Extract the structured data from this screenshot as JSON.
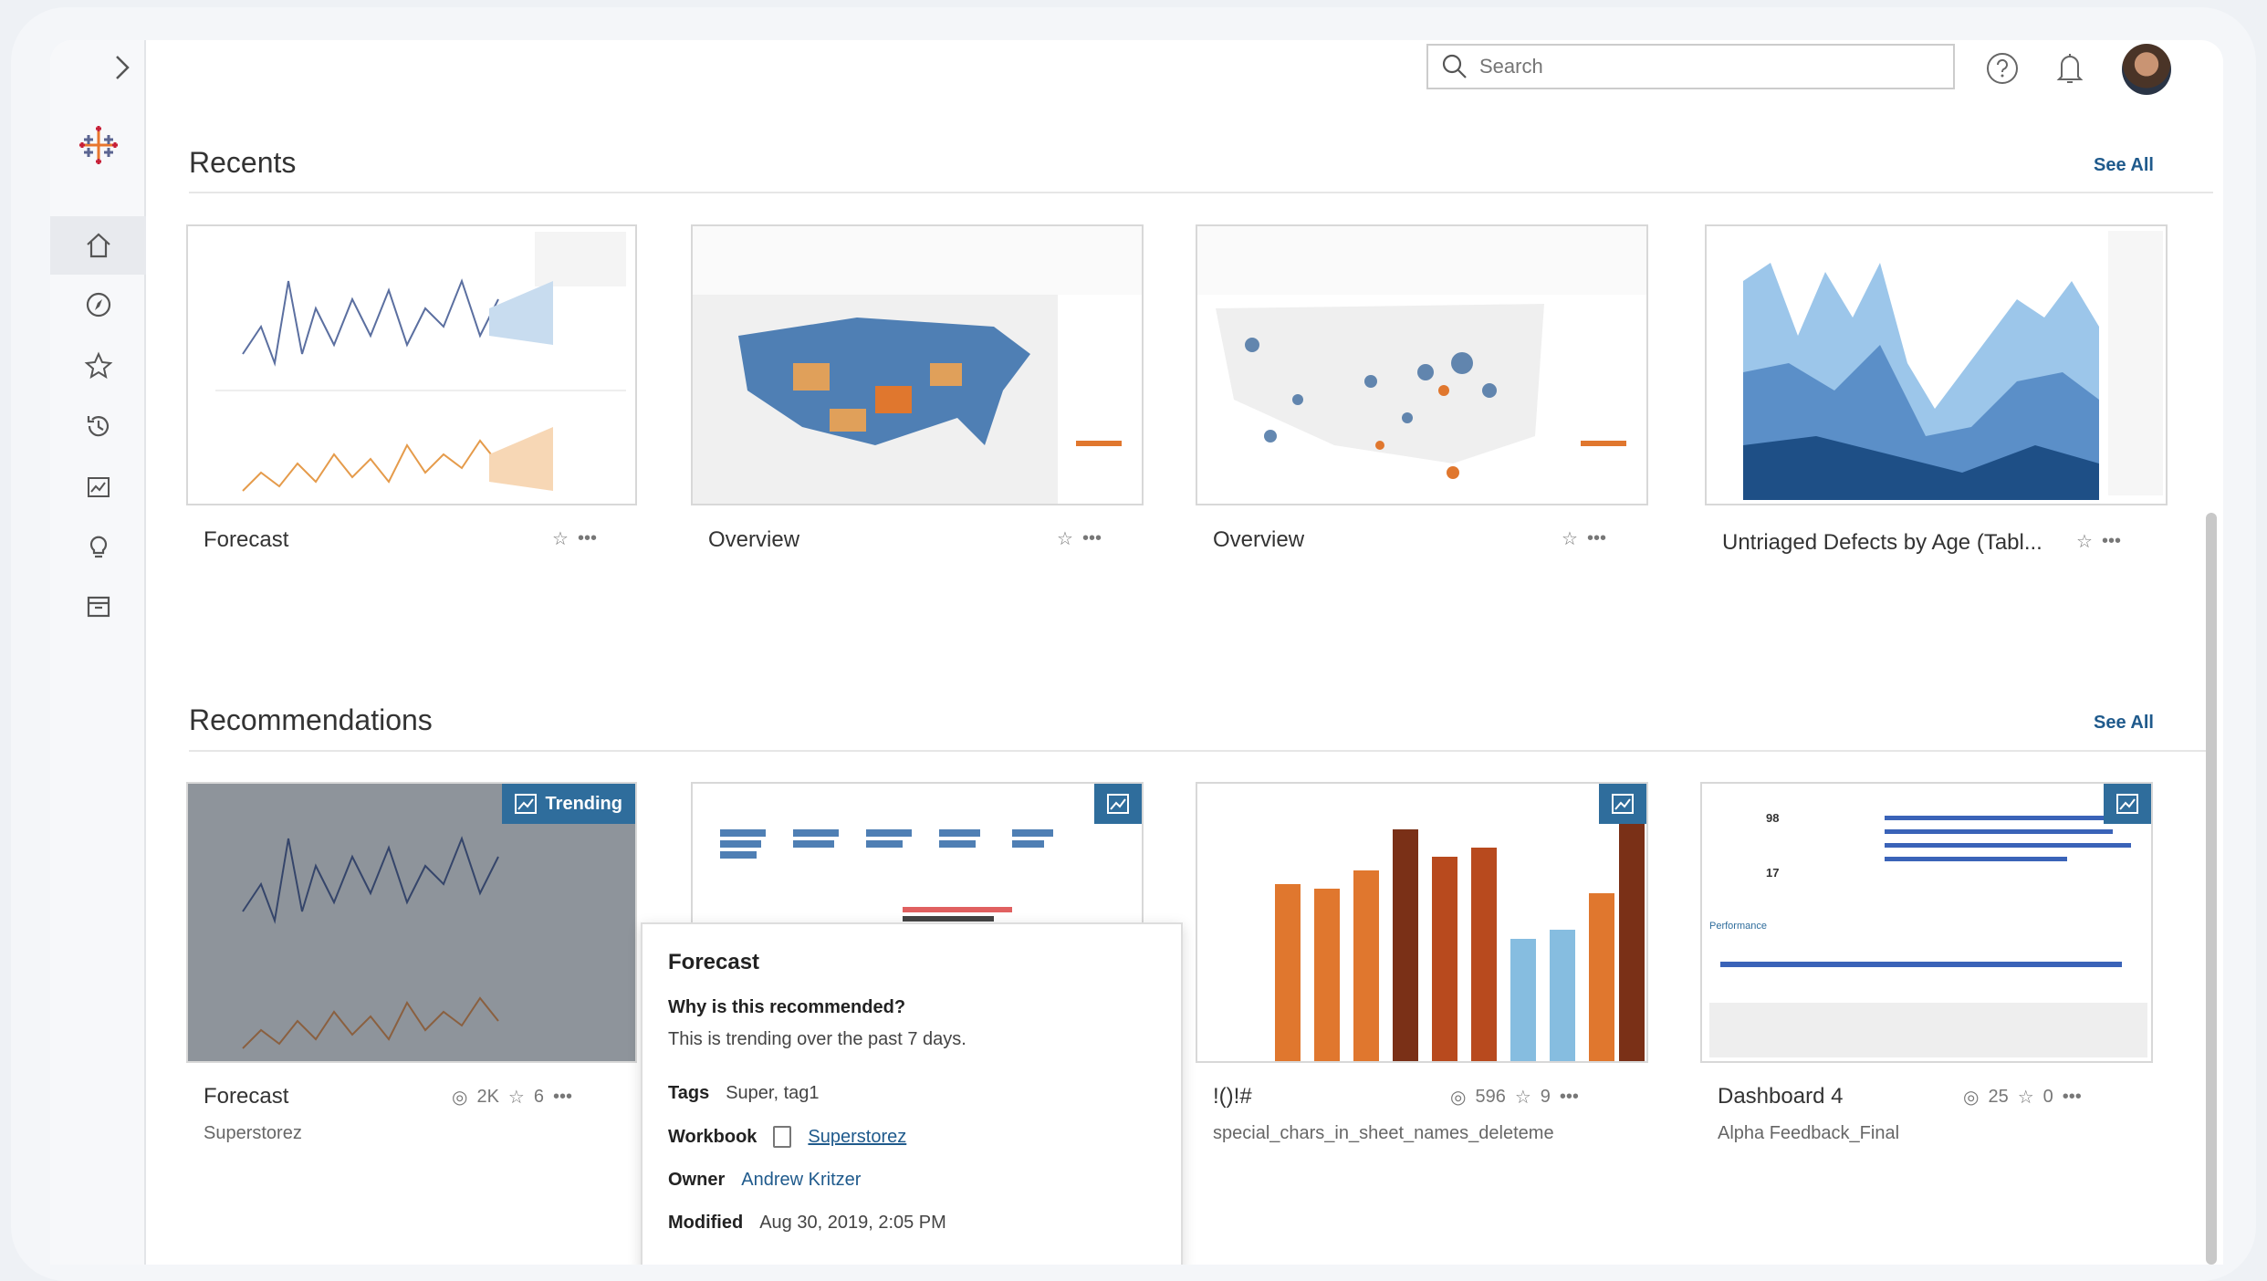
{
  "header": {
    "search_placeholder": "Search",
    "help_icon": "help-circle-icon",
    "bell_icon": "bell-icon"
  },
  "sidebar": {
    "items": [
      {
        "name": "home",
        "active": true
      },
      {
        "name": "explore"
      },
      {
        "name": "favorites"
      },
      {
        "name": "recents"
      },
      {
        "name": "recommendations"
      },
      {
        "name": "ask-data"
      },
      {
        "name": "collections"
      }
    ]
  },
  "recents": {
    "title": "Recents",
    "see_all": "See All",
    "items": [
      {
        "title": "Forecast"
      },
      {
        "title": "Overview"
      },
      {
        "title": "Overview"
      },
      {
        "title": "Untriaged Defects by Age (Tabl..."
      }
    ]
  },
  "recommendations": {
    "title": "Recommendations",
    "see_all": "See All",
    "items": [
      {
        "title": "Forecast",
        "subtitle": "Superstorez",
        "views": "2K",
        "favorites": "6",
        "badge": "Trending"
      },
      {
        "title": "",
        "subtitle": ""
      },
      {
        "title": "!()!#",
        "subtitle": "special_chars_in_sheet_names_deleteme",
        "views": "596",
        "favorites": "9"
      },
      {
        "title": "Dashboard 4",
        "subtitle": "Alpha Feedback_Final",
        "views": "25",
        "favorites": "0"
      }
    ]
  },
  "popup": {
    "title": "Forecast",
    "question": "Why is this recommended?",
    "reason": "This is trending over the past 7 days.",
    "tags_label": "Tags",
    "tags": "Super, tag1",
    "workbook_label": "Workbook",
    "workbook": "Superstorez",
    "owner_label": "Owner",
    "owner": "Andrew Kritzer",
    "modified_label": "Modified",
    "modified": "Aug 30, 2019, 2:05 PM"
  },
  "thumb_text": {
    "dash4_users": "98",
    "dash4_resp": "17",
    "dash4_perf": "Performance"
  },
  "colors": {
    "accent": "#1f5a8c",
    "badge": "#2f6d9c",
    "orange": "#e0772e",
    "blue": "#4f7fb4"
  }
}
